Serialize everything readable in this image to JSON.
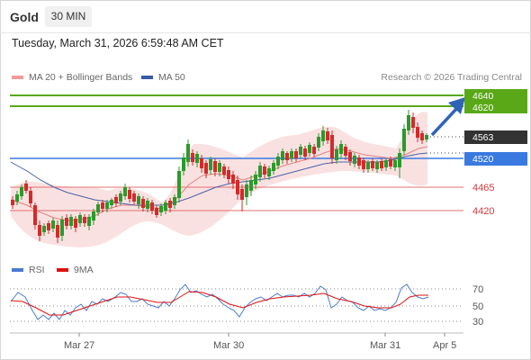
{
  "header": {
    "title": "Gold",
    "timeframe": "30 MIN"
  },
  "timestamp": "Tuesday, March 31, 2026 6:59:48 AM CET",
  "legend": {
    "bb_label": "MA 20 + Bollinger Bands",
    "ma50_label": "MA 50",
    "credit": "Research © 2026 Trading Central"
  },
  "levels": {
    "r2": "4640",
    "r1": "4620",
    "last": "4563",
    "pivot": "4520",
    "s1": "4465",
    "s2": "4420"
  },
  "rsi_legend": {
    "rsi": "RSI",
    "ma": "9MA"
  },
  "rsi_ticks": [
    "70",
    "50",
    "30"
  ],
  "x_ticks": [
    "Mar 27",
    "Mar 30",
    "Mar 31",
    "Apr 5"
  ],
  "colors": {
    "resistance": "#5aa817",
    "pivot": "#3a7ae0",
    "support": "#d23b3b",
    "candle_up": "#2b9a2b",
    "candle_down": "#d42a2a",
    "ma20": "#e88080",
    "ma50": "#4a62a8",
    "arrow": "#2f63b8"
  }
}
